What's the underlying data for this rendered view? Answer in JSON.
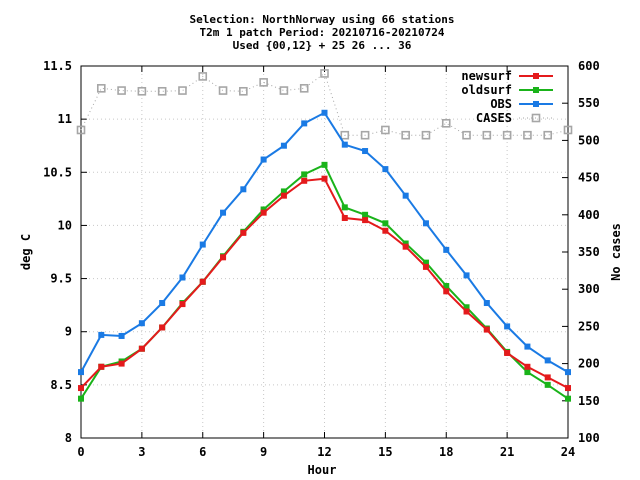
{
  "chart_data": {
    "type": "line",
    "title_lines": [
      "Selection: NorthNorway using    66 stations",
      "T2m 1 patch   Period: 20210716-20210724",
      "Used {00,12} + 25 26 ... 36"
    ],
    "xlabel": "Hour",
    "ylabel": "deg C",
    "y2label": "No cases",
    "xlim": [
      0,
      24
    ],
    "ylim": [
      8,
      11.5
    ],
    "y2lim": [
      100,
      600
    ],
    "x_ticks": [
      0,
      3,
      6,
      9,
      12,
      15,
      18,
      21,
      24
    ],
    "y_ticks": [
      "8",
      "8.5",
      "9",
      "9.5",
      "10",
      "10.5",
      "11",
      "11.5"
    ],
    "y2_ticks": [
      "100",
      "150",
      "200",
      "250",
      "300",
      "350",
      "400",
      "450",
      "500",
      "550",
      "600"
    ],
    "legend_position": "top-right",
    "grid": true,
    "x": [
      0,
      1,
      2,
      3,
      4,
      5,
      6,
      7,
      8,
      9,
      10,
      11,
      12,
      13,
      14,
      15,
      16,
      17,
      18,
      19,
      20,
      21,
      22,
      23,
      24
    ],
    "series": [
      {
        "name": "newsurf",
        "color": "#e41a1c",
        "marker": "filled-square",
        "axis": "left",
        "values": [
          8.47,
          8.67,
          8.7,
          8.84,
          9.04,
          9.26,
          9.47,
          9.7,
          9.93,
          10.12,
          10.28,
          10.42,
          10.44,
          10.07,
          10.05,
          9.95,
          9.8,
          9.61,
          9.38,
          9.19,
          9.02,
          8.8,
          8.67,
          8.57,
          8.47
        ]
      },
      {
        "name": "oldsurf",
        "color": "#1ab31a",
        "marker": "filled-square",
        "axis": "left",
        "values": [
          8.37,
          8.67,
          8.72,
          8.84,
          9.04,
          9.27,
          9.47,
          9.71,
          9.94,
          10.15,
          10.32,
          10.48,
          10.57,
          10.17,
          10.1,
          10.02,
          9.83,
          9.65,
          9.43,
          9.23,
          9.03,
          8.81,
          8.62,
          8.5,
          8.37
        ]
      },
      {
        "name": "OBS",
        "color": "#1a7ae4",
        "marker": "filled-square",
        "axis": "left",
        "values": [
          8.62,
          8.97,
          8.96,
          9.08,
          9.27,
          9.51,
          9.82,
          10.12,
          10.34,
          10.62,
          10.75,
          10.96,
          11.06,
          10.76,
          10.7,
          10.53,
          10.28,
          10.02,
          9.77,
          9.53,
          9.27,
          9.05,
          8.86,
          8.73,
          8.62
        ]
      },
      {
        "name": "CASES",
        "color": "#a6a6a6",
        "marker": "open-square",
        "axis": "right",
        "dotted": true,
        "values": [
          514,
          570,
          567,
          566,
          566,
          567,
          586,
          567,
          566,
          578,
          567,
          570,
          590,
          507,
          507,
          514,
          507,
          507,
          523,
          507,
          507,
          507,
          507,
          507,
          514
        ]
      }
    ]
  }
}
